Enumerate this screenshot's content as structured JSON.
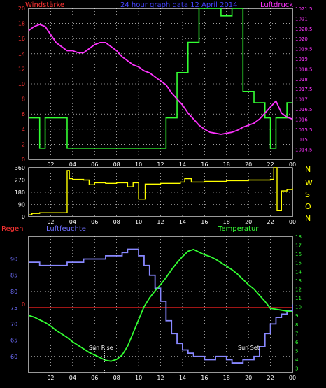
{
  "header": {
    "left_label": "Windstärke",
    "title": "24 hour graph data  12 April 2014",
    "right_label": "Luftdruck"
  },
  "middle": {
    "compass": [
      "N",
      "W",
      "S",
      "O",
      "N"
    ]
  },
  "bottom": {
    "label_rain": "Regen",
    "label_humidity": "Luftfeuchte",
    "label_temp": "Temperatur",
    "sunrise_label": "Sun Rise",
    "sunset_label": "Sun Set"
  },
  "colors": {
    "background": "#000000",
    "frame": "#ffffff",
    "grid": "#ffffff",
    "wind": "#33ff33",
    "pressure": "#ff33ff",
    "direction": "#ffff00",
    "humidity": "#8888ff",
    "temperature": "#33ff33",
    "rain": "#ff2222",
    "red_text": "#ff3333",
    "magenta_text": "#ff33ff",
    "blue_text": "#6f6fff",
    "yellow_text": "#ffff00",
    "green_text": "#33ff33"
  },
  "chart_data": [
    {
      "type": "line",
      "name": "wind_pressure",
      "title": "24 hour graph data  12 April 2014",
      "x_tick_labels": [
        "02",
        "04",
        "06",
        "08",
        "10",
        "12",
        "14",
        "16",
        "18",
        "20",
        "22",
        "00"
      ],
      "xlim": [
        0,
        24
      ],
      "ylim_left": [
        0,
        20
      ],
      "y_left_ticks": [
        "0",
        "2",
        "4",
        "6",
        "8",
        "10",
        "12",
        "14",
        "16",
        "18",
        "20"
      ],
      "ylim_right": [
        1014,
        1021.5
      ],
      "y_right_ticks": [
        "1014.5",
        "1015",
        "1015.5",
        "1016",
        "1016.5",
        "1017",
        "1017.5",
        "1018",
        "1018.5",
        "1019",
        "1019.5",
        "1020",
        "1020.5",
        "1021",
        "1021.5"
      ],
      "series": [
        {
          "name": "Windstärke",
          "axis": "left",
          "step": true,
          "x": [
            0,
            1,
            1.5,
            3.5,
            12.5,
            13.5,
            14.5,
            15.5,
            16.5,
            17.5,
            18.5,
            19.5,
            20.5,
            21.5,
            22.0,
            22.5,
            23.5,
            24
          ],
          "y": [
            5.5,
            1.5,
            5.5,
            1.5,
            5.5,
            11.5,
            15.5,
            20,
            20,
            19,
            20,
            9,
            7.5,
            5.5,
            1.5,
            5.5,
            7.5,
            7.5
          ]
        },
        {
          "name": "Luftdruck",
          "axis": "right",
          "step": false,
          "x": [
            0,
            0.5,
            1,
            1.5,
            2,
            2.5,
            3,
            3.5,
            4,
            4.5,
            5,
            5.5,
            6,
            6.5,
            7,
            7.5,
            8,
            8.5,
            9,
            9.5,
            10,
            10.5,
            11,
            11.5,
            12,
            12.5,
            13,
            13.5,
            14,
            14.5,
            15,
            15.5,
            16,
            16.5,
            17,
            17.5,
            18,
            18.5,
            19,
            19.5,
            20,
            20.5,
            21,
            21.5,
            22,
            22.5,
            23,
            23.5,
            24
          ],
          "y": [
            1020.4,
            1020.6,
            1020.7,
            1020.6,
            1020.2,
            1019.8,
            1019.6,
            1019.4,
            1019.4,
            1019.3,
            1019.3,
            1019.5,
            1019.7,
            1019.8,
            1019.8,
            1019.6,
            1019.4,
            1019.1,
            1018.9,
            1018.7,
            1018.6,
            1018.4,
            1018.3,
            1018.1,
            1017.9,
            1017.7,
            1017.3,
            1017.0,
            1016.7,
            1016.3,
            1016.0,
            1015.7,
            1015.5,
            1015.35,
            1015.3,
            1015.25,
            1015.3,
            1015.35,
            1015.45,
            1015.6,
            1015.7,
            1015.8,
            1016.0,
            1016.3,
            1016.6,
            1016.9,
            1016.3,
            1016.1,
            1016.0
          ]
        }
      ]
    },
    {
      "type": "line",
      "name": "wind_direction",
      "x_tick_labels": [
        "02",
        "04",
        "06",
        "08",
        "10",
        "12",
        "14",
        "16",
        "18",
        "20",
        "22",
        "00"
      ],
      "xlim": [
        0,
        24
      ],
      "ylim": [
        0,
        360
      ],
      "y_ticks": [
        "0",
        "90",
        "180",
        "270",
        "360"
      ],
      "series": [
        {
          "name": "direction",
          "step": true,
          "x": [
            0,
            0.3,
            1,
            2,
            3,
            3.3,
            3.5,
            3.7,
            4,
            5,
            5.5,
            6,
            7,
            8,
            9,
            9.5,
            10,
            10.6,
            12,
            13,
            13.8,
            14.2,
            14.8,
            16,
            18,
            20,
            21,
            22,
            22.3,
            22.6,
            23,
            23.5,
            24
          ],
          "y": [
            15,
            25,
            30,
            30,
            30,
            30,
            340,
            280,
            275,
            270,
            235,
            250,
            245,
            250,
            220,
            250,
            130,
            240,
            245,
            245,
            255,
            280,
            255,
            260,
            265,
            270,
            270,
            275,
            360,
            45,
            190,
            200,
            210
          ]
        }
      ]
    },
    {
      "type": "line",
      "name": "humidity_temperature",
      "x_tick_labels": [
        "02",
        "04",
        "06",
        "08",
        "10",
        "12",
        "14",
        "16",
        "18",
        "20",
        "22",
        "00"
      ],
      "xlim": [
        0,
        24
      ],
      "ylim_left": [
        55,
        97
      ],
      "y_left_ticks": [
        "60",
        "65",
        "70",
        "75",
        "80",
        "85",
        "90"
      ],
      "ylim_right": [
        2.5,
        18
      ],
      "y_right_ticks": [
        "3",
        "4",
        "5",
        "6",
        "7",
        "8",
        "9",
        "10",
        "11",
        "12",
        "13",
        "14",
        "15",
        "16",
        "17",
        "18"
      ],
      "series": [
        {
          "name": "Luftfeuchte",
          "axis": "left",
          "step": true,
          "x": [
            0,
            1,
            2,
            3,
            3.5,
            4,
            5,
            6,
            7,
            8,
            8.5,
            9,
            9.5,
            10,
            10.5,
            11,
            11.5,
            12,
            12.5,
            13,
            13.5,
            14,
            14.5,
            15,
            15.5,
            16,
            17,
            18,
            18.5,
            19,
            19.5,
            20,
            20.5,
            21,
            21.5,
            22,
            22.5,
            23,
            23.5,
            24
          ],
          "y": [
            89,
            88,
            88,
            88,
            89,
            89,
            90,
            90,
            91,
            91,
            92,
            93,
            93,
            91,
            88,
            85,
            81,
            77,
            71,
            67,
            64,
            62,
            61,
            60,
            60,
            59,
            60,
            59,
            58,
            58,
            59,
            59,
            60,
            63,
            67,
            70,
            72,
            73,
            74,
            76
          ]
        },
        {
          "name": "Temperatur",
          "axis": "right",
          "step": false,
          "x": [
            0,
            0.5,
            1,
            1.5,
            2,
            2.5,
            3,
            3.5,
            4,
            4.5,
            5,
            5.5,
            6,
            6.5,
            7,
            7.5,
            8,
            8.5,
            9,
            9.5,
            10,
            10.5,
            11,
            11.5,
            12,
            12.5,
            13,
            13.5,
            14,
            14.5,
            15,
            15.5,
            16,
            16.5,
            17,
            17.5,
            18,
            18.5,
            19,
            19.5,
            20,
            20.5,
            21,
            21.5,
            22,
            22.5,
            23,
            23.5,
            24
          ],
          "y": [
            9.0,
            8.8,
            8.5,
            8.2,
            7.8,
            7.3,
            6.9,
            6.5,
            6.0,
            5.6,
            5.2,
            4.8,
            4.5,
            4.2,
            3.9,
            3.8,
            4.0,
            4.5,
            5.5,
            7.0,
            8.5,
            10.0,
            11.0,
            11.8,
            12.5,
            13.3,
            14.2,
            15.0,
            15.7,
            16.3,
            16.5,
            16.2,
            15.9,
            15.7,
            15.4,
            15.0,
            14.6,
            14.2,
            13.7,
            13.1,
            12.5,
            12.0,
            11.3,
            10.6,
            9.8,
            9.7,
            9.6,
            9.5,
            9.4
          ]
        },
        {
          "name": "Regen",
          "axis": "left",
          "step": false,
          "x": [
            0,
            24
          ],
          "y": [
            75,
            75
          ]
        }
      ],
      "annotations": [
        {
          "text": "Sun Rise",
          "x": 6.9
        },
        {
          "text": "Sun Set",
          "x": 20.4
        }
      ],
      "rain_axis_label": "0"
    }
  ]
}
